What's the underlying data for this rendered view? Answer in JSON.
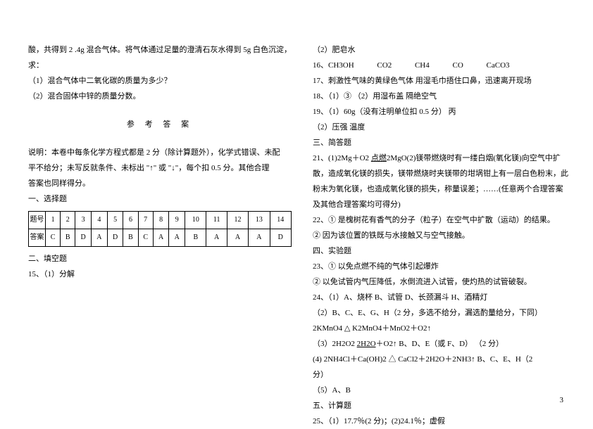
{
  "left": {
    "p1": "酸，共得到 2 .4g 混合气体。将气体通过足量的澄清石灰水得到 5g 白色沉淀，",
    "p2": "求：",
    "p3": "（1）混合气体中二氧化碳的质量为多少？",
    "p4": "（2）混合固体中锌的质量分数。",
    "title": "参 考 答 案",
    "note1": "说明：本卷中每条化学方程式都是 2 分（除计算题外），化学式错误、未配",
    "note2": "平不给分；未写反就条件、未标出 \"↑\" 或 \"↓\"，每个扣 0.5 分。其他合理",
    "note3": "答案也同样得分。",
    "sec1": "一、选择题",
    "table": {
      "rowhead1": "题号",
      "nums": [
        "1",
        "2",
        "3",
        "4",
        "5",
        "6",
        "7",
        "8",
        "9",
        "10",
        "11",
        "12",
        "13",
        "14"
      ],
      "rowhead2": "答案",
      "ans": [
        "C",
        "B",
        "D",
        "A",
        "D",
        "B",
        "C",
        "A",
        "A",
        "B",
        "A",
        "A",
        "A",
        "D"
      ]
    },
    "sec2": "二、填空题",
    "l15": "15、（1）分解"
  },
  "right": {
    "r0": "（2）肥皂水",
    "r16_a": "16、CH3OH",
    "r16_b": "CO2",
    "r16_c": "CH4",
    "r16_d": "CO",
    "r16_e": "CaCO3",
    "r17": "17、刺激性气味的黄绿色气体    用湿毛巾捂住口鼻，迅速离开现场",
    "r18": "18、（1）③  （2）用湿布盖  隔绝空气",
    "r19a": "19、（1）60g（没有注明单位扣 0.5 分）        丙",
    "r19b": "（2）压强      温度",
    "sec3": "三、简答题",
    "r21a_pre": "21、(1)2Mg＋O2 ",
    "r21a_mid": "点燃",
    "r21a_post": "2MgO(2)镁带燃烧时有一缕白烟(氧化镁)向空气中扩",
    "r21b": "散，造成氧化镁的损失，镁带燃烧时夹镁带的坩埚钳上有一层白色粉末，此",
    "r21c": "粉末为氧化镁，也造成氧化镁的损失，称量误差；……(任意两个合理答案",
    "r21d": "及其他合理答案均可得分)",
    "r22a": "22、① 是槐树花有香气的分子（粒子）在空气中扩散（运动）的结果。",
    "r22b": "② 因为该位置的铁既与水接触又与空气接触。",
    "sec4": "四、实验题",
    "r23a": "23、① 以免点燃不纯的气体引起爆炸",
    "r23b": "② 以免试管内气压降低，水倒流进入试管，使灼热的试管破裂。",
    "r24a": "24、（1）A、烧杯    B、试管    D、长颈漏斗    H、酒精灯",
    "r24b": "（2）B、C、E、G、H（2 分，多选不给分，漏选酌量给分，下同）",
    "r24c": "2KMnO4  △  K2MnO4＋MnO2＋O2↑",
    "r24d_a": "（3）2H2O2 ",
    "r24d_b": "2H2O",
    "r24d_c": "＋O2↑               B、D、E（或 F、D） （2 分）",
    "r24e": "(4) 2NH4Cl＋Ca(OH)2  △  CaCl2＋2H2O＋2NH3↑   B、C、E、H（2",
    "r24f": "分）",
    "r24g": "（5）A、B",
    "sec5": "五、计算题",
    "r25": "25、（1）17.7％(2 分)；(2)24.1％；虚假"
  },
  "pagenum": "3"
}
